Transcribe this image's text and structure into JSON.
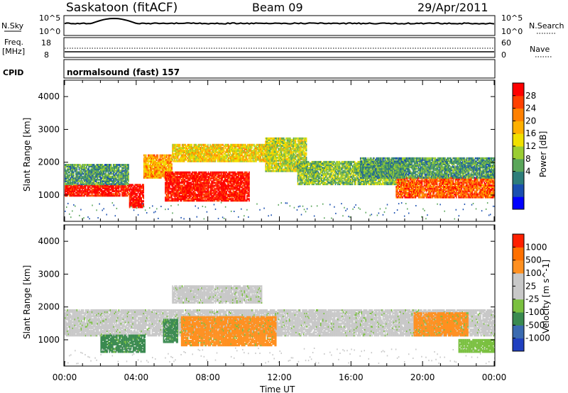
{
  "header": {
    "station": "Saskatoon (fitACF)",
    "beam": "Beam 09",
    "date": "29/Apr/2011"
  },
  "noise_panel": {
    "left_label": "N.Sky",
    "right_label": "N.Search",
    "left_ticks": [
      "10^5",
      "10^0"
    ],
    "right_ticks": [
      "10^5",
      "10^0"
    ]
  },
  "freq_panel": {
    "left_label_1": "Freq.",
    "left_label_2": "[MHz]",
    "right_label": "Nave",
    "left_ticks": [
      "18",
      "8"
    ],
    "right_ticks": [
      "60",
      "0"
    ]
  },
  "cpid_panel": {
    "label": "CPID",
    "text": "normalsound (fast) 157"
  },
  "chart_data": [
    {
      "type": "heatmap",
      "name": "power",
      "ylabel": "Slant Range [km]",
      "xlim_hours": [
        0,
        24
      ],
      "ylim": [
        200,
        4500
      ],
      "yticks": [
        1000,
        2000,
        3000,
        4000
      ],
      "colorbar_label": "Power [dB]",
      "colorbar_ticks": [
        "28",
        "24",
        "20",
        "16",
        "12",
        "8",
        "4"
      ],
      "colorbar_colors": [
        "#0000ff",
        "#1a4fb0",
        "#2d7d7a",
        "#5aa65a",
        "#9acd32",
        "#f0e000",
        "#ffb000",
        "#ff8000",
        "#ff4000",
        "#ff0000"
      ],
      "bands": [
        {
          "t0": 0.0,
          "t1": 3.6,
          "r0": 950,
          "r1": 1300,
          "level": 1.0
        },
        {
          "t0": 0.0,
          "t1": 3.6,
          "r0": 1300,
          "r1": 1900,
          "level": 0.3
        },
        {
          "t0": 3.6,
          "t1": 4.4,
          "r0": 600,
          "r1": 1300,
          "level": 1.0
        },
        {
          "t0": 4.4,
          "t1": 6.0,
          "r0": 1500,
          "r1": 2200,
          "level": 0.7
        },
        {
          "t0": 5.6,
          "t1": 10.3,
          "r0": 800,
          "r1": 1700,
          "level": 1.0
        },
        {
          "t0": 6.0,
          "t1": 11.8,
          "r0": 2000,
          "r1": 2500,
          "level": 0.6
        },
        {
          "t0": 11.2,
          "t1": 13.5,
          "r0": 1700,
          "r1": 2700,
          "level": 0.5
        },
        {
          "t0": 13.0,
          "t1": 19.0,
          "r0": 1300,
          "r1": 2000,
          "level": 0.4
        },
        {
          "t0": 18.5,
          "t1": 24.0,
          "r0": 900,
          "r1": 1500,
          "level": 0.85
        },
        {
          "t0": 16.5,
          "t1": 24.0,
          "r0": 1500,
          "r1": 2100,
          "level": 0.3
        }
      ]
    },
    {
      "type": "heatmap",
      "name": "velocity",
      "ylabel": "Slant Range [km]",
      "xlabel": "Time UT",
      "xticks": [
        "00:00",
        "04:00",
        "08:00",
        "12:00",
        "16:00",
        "20:00",
        "00:00"
      ],
      "xlim_hours": [
        0,
        24
      ],
      "ylim": [
        200,
        4500
      ],
      "yticks": [
        1000,
        2000,
        3000,
        4000
      ],
      "colorbar_label": "Velocity [m s^-1]",
      "colorbar_ticks": [
        "1000",
        "500",
        "100",
        "25",
        "-25",
        "-100",
        "-500",
        "-1000"
      ],
      "colorbar_colors": [
        "#2040c0",
        "#3a6ab0",
        "#3a8a50",
        "#7ac040",
        "#c8c8c8",
        "#c8c8c8",
        "#ff9020",
        "#ff7000",
        "#ff2000"
      ],
      "bands": [
        {
          "t0": 0.0,
          "t1": 24.0,
          "r0": 1100,
          "r1": 1900,
          "color": "#c8c8c8"
        },
        {
          "t0": 2.0,
          "t1": 4.5,
          "r0": 600,
          "r1": 1100,
          "color": "#3a8a50"
        },
        {
          "t0": 5.5,
          "t1": 6.3,
          "r0": 900,
          "r1": 1600,
          "color": "#3a8a50"
        },
        {
          "t0": 6.5,
          "t1": 11.8,
          "r0": 800,
          "r1": 1700,
          "color": "#ff9020"
        },
        {
          "t0": 6.0,
          "t1": 11.0,
          "r0": 2100,
          "r1": 2600,
          "color": "#c8c8c8"
        },
        {
          "t0": 19.5,
          "t1": 22.5,
          "r0": 1100,
          "r1": 1800,
          "color": "#ff9020"
        },
        {
          "t0": 22.0,
          "t1": 24.0,
          "r0": 600,
          "r1": 1000,
          "color": "#7ac040"
        }
      ]
    }
  ]
}
